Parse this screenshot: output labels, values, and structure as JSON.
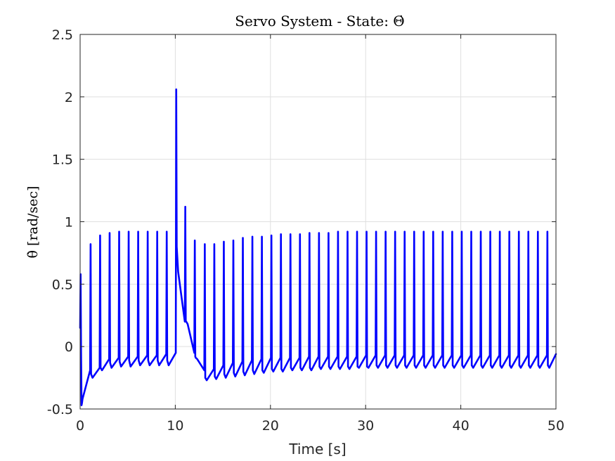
{
  "chart_data": {
    "type": "line",
    "title": "Servo System - State: Θ̇",
    "xlabel": "Time [s]",
    "ylabel": "θ̇ [rad/sec]",
    "xlim": [
      0,
      50
    ],
    "ylim": [
      -0.5,
      2.5
    ],
    "xticks": [
      0,
      10,
      20,
      30,
      40,
      50
    ],
    "xtick_labels": [
      "0",
      "10",
      "20",
      "30",
      "40",
      "50"
    ],
    "yticks": [
      -0.5,
      0,
      0.5,
      1,
      1.5,
      2,
      2.5
    ],
    "ytick_labels": [
      "-0.5",
      "0",
      "0.5",
      "1",
      "1.5",
      "2",
      "2.5"
    ],
    "grid": true,
    "legend": "none",
    "series": [
      {
        "color": "#0000ff",
        "description": "Periodic impulse-like spikes (period ~1.0 s) with exponential decay to a negative baseline",
        "x": [
          0.0,
          0.05,
          0.1,
          0.15,
          0.2,
          0.25,
          1.05,
          1.1,
          1.15,
          1.3,
          2.05,
          2.1,
          2.15,
          2.3,
          3.05,
          3.1,
          3.15,
          3.3,
          4.05,
          4.1,
          4.15,
          4.3,
          5.05,
          5.1,
          5.15,
          5.3,
          6.05,
          6.1,
          6.15,
          6.3,
          7.05,
          7.1,
          7.15,
          7.3,
          8.05,
          8.1,
          8.15,
          8.3,
          9.05,
          9.1,
          9.15,
          9.3,
          10.05,
          10.1,
          10.15,
          10.3,
          11.0,
          11.05,
          11.1,
          11.15,
          11.3,
          12.0,
          12.05,
          12.1,
          12.15,
          12.3,
          13.05,
          13.1,
          13.15,
          13.3,
          14.05,
          14.1,
          14.15,
          14.3,
          15.05,
          15.1,
          15.15,
          15.3,
          16.05,
          16.1,
          16.15,
          16.3,
          17.05,
          17.1,
          17.15,
          17.3,
          18.05,
          18.1,
          18.15,
          18.3,
          19.05,
          19.1,
          19.15,
          19.3,
          20.05,
          20.1,
          20.15,
          20.3,
          21.05,
          21.1,
          21.15,
          21.3,
          22.05,
          22.1,
          22.15,
          22.3,
          23.05,
          23.1,
          23.15,
          23.3,
          24.05,
          24.1,
          24.15,
          24.3,
          25.05,
          25.1,
          25.15,
          25.3,
          26.05,
          26.1,
          26.15,
          26.3,
          27.05,
          27.1,
          27.15,
          27.3,
          28.05,
          28.1,
          28.15,
          28.3,
          29.05,
          29.1,
          29.15,
          29.3,
          30.05,
          30.1,
          30.15,
          30.3,
          31.05,
          31.1,
          31.15,
          31.3,
          32.05,
          32.1,
          32.15,
          32.3,
          33.05,
          33.1,
          33.15,
          33.3,
          34.05,
          34.1,
          34.15,
          34.3,
          35.05,
          35.1,
          35.15,
          35.3,
          36.05,
          36.1,
          36.15,
          36.3,
          37.05,
          37.1,
          37.15,
          37.3,
          38.05,
          38.1,
          38.15,
          38.3,
          39.05,
          39.1,
          39.15,
          39.3,
          40.05,
          40.1,
          40.15,
          40.3,
          41.05,
          41.1,
          41.15,
          41.3,
          42.05,
          42.1,
          42.15,
          42.3,
          43.05,
          43.1,
          43.15,
          43.3,
          44.05,
          44.1,
          44.15,
          44.3,
          45.05,
          45.1,
          45.15,
          45.3,
          46.05,
          46.1,
          46.15,
          46.3,
          47.05,
          47.1,
          47.15,
          47.3,
          48.05,
          48.1,
          48.15,
          48.3,
          49.05,
          49.1,
          49.15,
          49.3,
          50.0
        ],
        "y": [
          0.15,
          0.58,
          -0.05,
          -0.47,
          -0.45,
          -0.42,
          -0.19,
          0.82,
          -0.22,
          -0.25,
          -0.17,
          0.89,
          -0.17,
          -0.19,
          -0.1,
          0.91,
          -0.13,
          -0.17,
          -0.09,
          0.92,
          -0.12,
          -0.16,
          -0.08,
          0.92,
          -0.11,
          -0.16,
          -0.08,
          0.92,
          -0.11,
          -0.15,
          -0.07,
          0.92,
          -0.11,
          -0.15,
          -0.07,
          0.92,
          -0.11,
          -0.15,
          -0.06,
          0.92,
          -0.11,
          -0.15,
          -0.05,
          2.06,
          0.8,
          0.6,
          0.2,
          1.12,
          0.2,
          0.2,
          0.18,
          -0.05,
          0.85,
          -0.08,
          -0.09,
          -0.1,
          -0.19,
          0.82,
          -0.25,
          -0.27,
          -0.18,
          0.82,
          -0.24,
          -0.26,
          -0.15,
          0.84,
          -0.22,
          -0.25,
          -0.13,
          0.85,
          -0.21,
          -0.24,
          -0.12,
          0.87,
          -0.2,
          -0.23,
          -0.11,
          0.88,
          -0.19,
          -0.22,
          -0.1,
          0.88,
          -0.19,
          -0.21,
          -0.09,
          0.89,
          -0.18,
          -0.2,
          -0.09,
          0.9,
          -0.18,
          -0.2,
          -0.09,
          0.9,
          -0.17,
          -0.19,
          -0.09,
          0.9,
          -0.17,
          -0.19,
          -0.08,
          0.91,
          -0.17,
          -0.19,
          -0.08,
          0.91,
          -0.16,
          -0.18,
          -0.08,
          0.91,
          -0.16,
          -0.18,
          -0.08,
          0.92,
          -0.16,
          -0.18,
          -0.08,
          0.92,
          -0.16,
          -0.18,
          -0.08,
          0.92,
          -0.16,
          -0.17,
          -0.07,
          0.92,
          -0.16,
          -0.17,
          -0.07,
          0.92,
          -0.15,
          -0.17,
          -0.07,
          0.92,
          -0.15,
          -0.17,
          -0.07,
          0.92,
          -0.15,
          -0.17,
          -0.07,
          0.92,
          -0.15,
          -0.17,
          -0.07,
          0.92,
          -0.15,
          -0.17,
          -0.07,
          0.92,
          -0.15,
          -0.17,
          -0.07,
          0.92,
          -0.15,
          -0.17,
          -0.07,
          0.92,
          -0.15,
          -0.17,
          -0.07,
          0.92,
          -0.15,
          -0.17,
          -0.07,
          0.92,
          -0.15,
          -0.17,
          -0.07,
          0.92,
          -0.15,
          -0.17,
          -0.07,
          0.92,
          -0.15,
          -0.17,
          -0.07,
          0.92,
          -0.15,
          -0.17,
          -0.07,
          0.92,
          -0.15,
          -0.17,
          -0.07,
          0.92,
          -0.15,
          -0.17,
          -0.07,
          0.92,
          -0.15,
          -0.17,
          -0.07,
          0.92,
          -0.15,
          -0.17,
          -0.07,
          0.92,
          -0.15,
          -0.17,
          -0.07,
          0.92,
          -0.15,
          -0.17,
          -0.06
        ]
      }
    ]
  }
}
